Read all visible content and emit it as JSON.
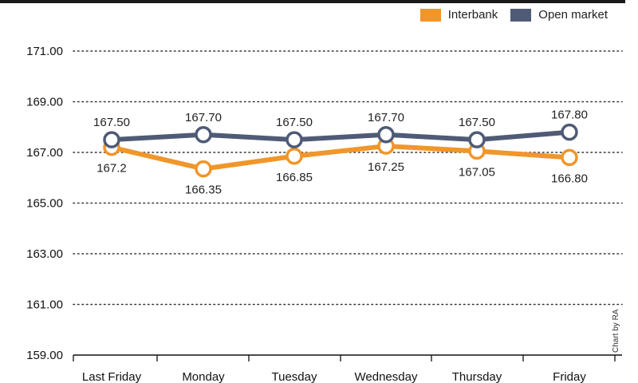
{
  "chart_data": {
    "type": "line",
    "categories": [
      "Last Friday",
      "Monday",
      "Tuesday",
      "Wednesday",
      "Thursday",
      "Friday"
    ],
    "series": [
      {
        "name": "Interbank",
        "color": "#f0962a",
        "values": [
          167.2,
          166.35,
          166.85,
          167.25,
          167.05,
          166.8
        ],
        "labels": [
          "167.2",
          "166.35",
          "166.85",
          "167.25",
          "167.05",
          "166.80"
        ]
      },
      {
        "name": "Open market",
        "color": "#4f5b76",
        "values": [
          167.5,
          167.7,
          167.5,
          167.7,
          167.5,
          167.8
        ],
        "labels": [
          "167.50",
          "167.70",
          "167.50",
          "167.70",
          "167.50",
          "167.80"
        ]
      }
    ],
    "yticks": [
      "171.00",
      "169.00",
      "167.00",
      "165.00",
      "163.00",
      "161.00",
      "159.00"
    ],
    "ylim": [
      159,
      171
    ],
    "grid": "dotted horizontal",
    "legend_position": "top-right"
  },
  "credit": "Chart by RA"
}
